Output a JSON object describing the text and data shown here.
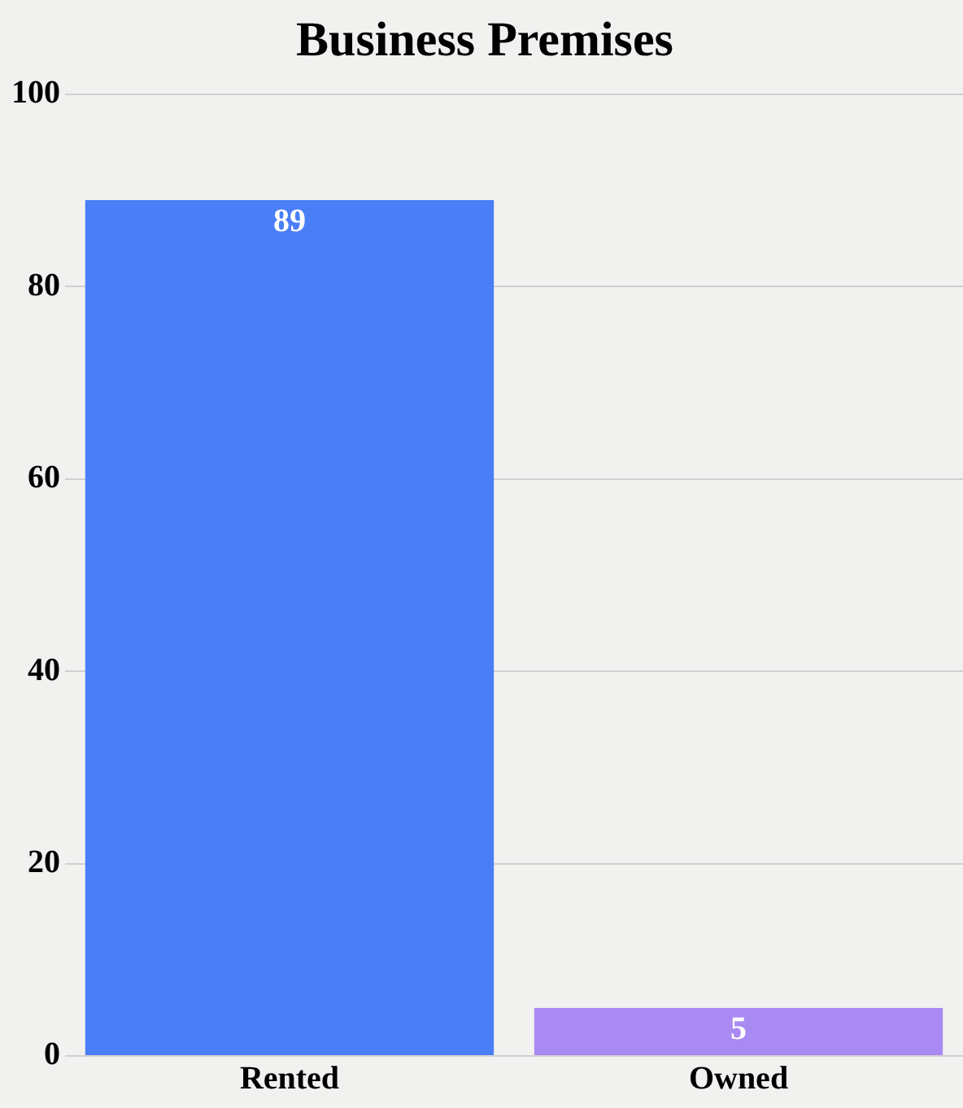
{
  "chart_data": {
    "type": "bar",
    "title": "Business Premises",
    "categories": [
      "Rented",
      "Owned"
    ],
    "values": [
      89,
      5
    ],
    "colors": [
      "#4a7ef6",
      "#a98af2"
    ],
    "ylim": [
      0,
      100
    ],
    "yticks": [
      0,
      20,
      40,
      60,
      80,
      100
    ],
    "grid": "y",
    "legend": false,
    "data_labels": true
  }
}
